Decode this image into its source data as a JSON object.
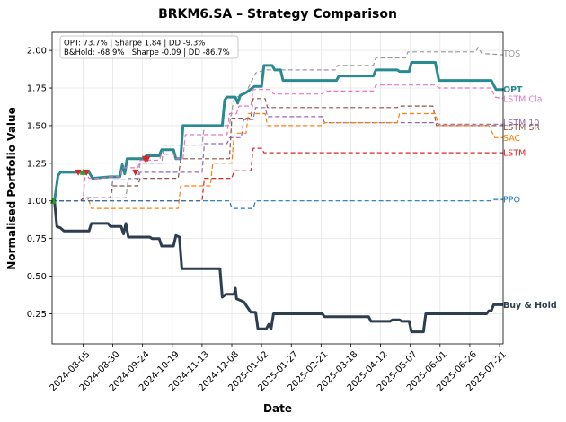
{
  "chart_data": {
    "type": "line",
    "title": "BRKM6.SA – Strategy Comparison",
    "xlabel": "Date",
    "ylabel": "Normalised Portfolio Value",
    "xlim": [
      "2024-07-10",
      "2025-07-24"
    ],
    "ylim": [
      0.05,
      2.12
    ],
    "xticks": [
      "2024-08-05",
      "2024-08-30",
      "2024-09-24",
      "2024-10-19",
      "2024-11-13",
      "2024-12-08",
      "2025-01-02",
      "2025-01-27",
      "2025-02-21",
      "2025-03-18",
      "2025-04-12",
      "2025-05-07",
      "2025-06-01",
      "2025-06-26",
      "2025-07-21"
    ],
    "yticks": [
      0.25,
      0.5,
      0.75,
      1.0,
      1.25,
      1.5,
      1.75,
      2.0
    ],
    "yticklabels": [
      "0.25",
      "0.50",
      "0.75",
      "1.00",
      "1.25",
      "1.50",
      "1.75",
      "2.00"
    ],
    "grid": true,
    "annotation": [
      "OPT: 73.7% | Sharpe 1.84 | DD -9.3%",
      "B&Hold: -68.9% | Sharpe -0.09 | DD -86.7%"
    ],
    "markers": [
      {
        "date": "2024-07-11",
        "y": 1.0,
        "kind": "buy",
        "color": "#2ca02c"
      },
      {
        "date": "2024-08-01",
        "y": 1.19,
        "kind": "sell",
        "color": "#d62728"
      },
      {
        "date": "2024-08-05",
        "y": 1.19,
        "kind": "buy",
        "color": "#2ca02c"
      },
      {
        "date": "2024-08-08",
        "y": 1.19,
        "kind": "sell",
        "color": "#d62728"
      },
      {
        "date": "2024-09-18",
        "y": 1.19,
        "kind": "sell",
        "color": "#d62728"
      },
      {
        "date": "2024-09-26",
        "y": 1.28,
        "kind": "sell",
        "color": "#d62728"
      },
      {
        "date": "2024-09-28",
        "y": 1.28,
        "kind": "sell",
        "color": "#d62728"
      }
    ],
    "series": [
      {
        "name": "TOS",
        "color": "#999999",
        "dash": "5,3",
        "width": 1.2,
        "label_y": 1.98,
        "points": [
          [
            "2024-07-10",
            1.0
          ],
          [
            "2024-08-08",
            1.0
          ],
          [
            "2024-08-10",
            1.02
          ],
          [
            "2024-09-10",
            1.02
          ],
          [
            "2024-09-12",
            1.15
          ],
          [
            "2024-09-20",
            1.15
          ],
          [
            "2024-09-22",
            1.25
          ],
          [
            "2024-10-10",
            1.25
          ],
          [
            "2024-10-12",
            1.37
          ],
          [
            "2024-11-13",
            1.37
          ],
          [
            "2024-11-15",
            1.5
          ],
          [
            "2024-12-06",
            1.5
          ],
          [
            "2024-12-08",
            1.6
          ],
          [
            "2024-12-10",
            1.68
          ],
          [
            "2024-12-20",
            1.72
          ],
          [
            "2024-12-28",
            1.85
          ],
          [
            "2025-01-05",
            1.87
          ],
          [
            "2025-03-05",
            1.87
          ],
          [
            "2025-03-07",
            1.9
          ],
          [
            "2025-04-06",
            1.9
          ],
          [
            "2025-04-08",
            1.95
          ],
          [
            "2025-05-03",
            1.95
          ],
          [
            "2025-05-05",
            1.99
          ],
          [
            "2025-07-01",
            1.99
          ],
          [
            "2025-07-03",
            2.02
          ],
          [
            "2025-07-06",
            1.98
          ],
          [
            "2025-07-24",
            1.97
          ]
        ]
      },
      {
        "name": "OPT",
        "color": "#2a8a92",
        "dash": "",
        "width": 3.0,
        "label_y": 1.74,
        "points": [
          [
            "2024-07-10",
            1.0
          ],
          [
            "2024-07-12",
            1.0
          ],
          [
            "2024-07-15",
            1.17
          ],
          [
            "2024-07-17",
            1.19
          ],
          [
            "2024-08-10",
            1.19
          ],
          [
            "2024-08-13",
            1.15
          ],
          [
            "2024-08-28",
            1.16
          ],
          [
            "2024-09-05",
            1.16
          ],
          [
            "2024-09-07",
            1.24
          ],
          [
            "2024-09-09",
            1.18
          ],
          [
            "2024-09-11",
            1.28
          ],
          [
            "2024-09-25",
            1.28
          ],
          [
            "2024-09-27",
            1.3
          ],
          [
            "2024-10-08",
            1.3
          ],
          [
            "2024-10-10",
            1.34
          ],
          [
            "2024-10-20",
            1.34
          ],
          [
            "2024-10-22",
            1.28
          ],
          [
            "2024-10-26",
            1.28
          ],
          [
            "2024-10-28",
            1.5
          ],
          [
            "2024-11-30",
            1.5
          ],
          [
            "2024-12-02",
            1.67
          ],
          [
            "2024-12-04",
            1.69
          ],
          [
            "2024-12-11",
            1.69
          ],
          [
            "2024-12-13",
            1.65
          ],
          [
            "2024-12-15",
            1.7
          ],
          [
            "2024-12-20",
            1.72
          ],
          [
            "2024-12-27",
            1.76
          ],
          [
            "2025-01-02",
            1.76
          ],
          [
            "2025-01-04",
            1.9
          ],
          [
            "2025-01-11",
            1.9
          ],
          [
            "2025-01-13",
            1.87
          ],
          [
            "2025-01-18",
            1.87
          ],
          [
            "2025-01-20",
            1.8
          ],
          [
            "2025-03-06",
            1.8
          ],
          [
            "2025-03-08",
            1.83
          ],
          [
            "2025-04-06",
            1.83
          ],
          [
            "2025-04-08",
            1.87
          ],
          [
            "2025-04-26",
            1.87
          ],
          [
            "2025-04-28",
            1.86
          ],
          [
            "2025-05-06",
            1.86
          ],
          [
            "2025-05-08",
            1.92
          ],
          [
            "2025-05-28",
            1.92
          ],
          [
            "2025-05-31",
            1.8
          ],
          [
            "2025-07-14",
            1.8
          ],
          [
            "2025-07-18",
            1.74
          ],
          [
            "2025-07-24",
            1.74
          ]
        ]
      },
      {
        "name": "LSTM Cla",
        "color": "#e377c2",
        "dash": "5,3",
        "width": 1.2,
        "label_y": 1.68,
        "points": [
          [
            "2024-07-10",
            1.0
          ],
          [
            "2024-08-05",
            1.0
          ],
          [
            "2024-08-07",
            1.19
          ],
          [
            "2024-08-10",
            1.15
          ],
          [
            "2024-08-20",
            1.15
          ],
          [
            "2024-08-28",
            1.16
          ],
          [
            "2024-09-05",
            1.16
          ],
          [
            "2024-09-07",
            1.22
          ],
          [
            "2024-09-20",
            1.22
          ],
          [
            "2024-09-22",
            1.27
          ],
          [
            "2024-10-08",
            1.27
          ],
          [
            "2024-10-10",
            1.31
          ],
          [
            "2024-10-20",
            1.31
          ],
          [
            "2024-10-22",
            1.28
          ],
          [
            "2024-10-28",
            1.28
          ],
          [
            "2024-10-30",
            1.44
          ],
          [
            "2024-12-04",
            1.44
          ],
          [
            "2024-12-06",
            1.58
          ],
          [
            "2024-12-12",
            1.58
          ],
          [
            "2024-12-14",
            1.63
          ],
          [
            "2024-12-24",
            1.63
          ],
          [
            "2024-12-26",
            1.74
          ],
          [
            "2025-01-10",
            1.74
          ],
          [
            "2025-01-12",
            1.71
          ],
          [
            "2025-02-22",
            1.71
          ],
          [
            "2025-02-24",
            1.73
          ],
          [
            "2025-04-06",
            1.73
          ],
          [
            "2025-04-08",
            1.77
          ],
          [
            "2025-05-28",
            1.77
          ],
          [
            "2025-05-31",
            1.75
          ],
          [
            "2025-07-14",
            1.75
          ],
          [
            "2025-07-17",
            1.69
          ],
          [
            "2025-07-24",
            1.68
          ]
        ]
      },
      {
        "name": "LSTM 10",
        "color": "#9467bd",
        "dash": "5,3",
        "width": 1.2,
        "label_y": 1.52,
        "points": [
          [
            "2024-07-10",
            1.0
          ],
          [
            "2024-08-03",
            1.0
          ],
          [
            "2024-08-05",
            1.02
          ],
          [
            "2024-08-28",
            1.02
          ],
          [
            "2024-08-30",
            1.14
          ],
          [
            "2024-09-20",
            1.14
          ],
          [
            "2024-09-22",
            1.19
          ],
          [
            "2024-11-13",
            1.19
          ],
          [
            "2024-11-15",
            1.38
          ],
          [
            "2024-12-04",
            1.38
          ],
          [
            "2024-12-06",
            1.42
          ],
          [
            "2024-12-16",
            1.42
          ],
          [
            "2024-12-18",
            1.54
          ],
          [
            "2024-12-26",
            1.54
          ],
          [
            "2024-12-28",
            1.62
          ],
          [
            "2025-01-05",
            1.62
          ],
          [
            "2025-01-07",
            1.56
          ],
          [
            "2025-02-22",
            1.56
          ],
          [
            "2025-02-24",
            1.52
          ],
          [
            "2025-05-28",
            1.52
          ],
          [
            "2025-05-31",
            1.51
          ],
          [
            "2025-07-24",
            1.51
          ]
        ]
      },
      {
        "name": "LSTM SR",
        "color": "#8c564b",
        "dash": "5,3",
        "width": 1.2,
        "label_y": 1.49,
        "points": [
          [
            "2024-07-10",
            1.0
          ],
          [
            "2024-08-03",
            1.0
          ],
          [
            "2024-08-05",
            1.02
          ],
          [
            "2024-08-28",
            1.02
          ],
          [
            "2024-08-30",
            1.1
          ],
          [
            "2024-09-20",
            1.1
          ],
          [
            "2024-09-22",
            1.15
          ],
          [
            "2024-10-24",
            1.15
          ],
          [
            "2024-10-26",
            1.28
          ],
          [
            "2024-12-06",
            1.28
          ],
          [
            "2024-12-08",
            1.55
          ],
          [
            "2024-12-24",
            1.55
          ],
          [
            "2024-12-26",
            1.68
          ],
          [
            "2025-01-05",
            1.68
          ],
          [
            "2025-01-07",
            1.62
          ],
          [
            "2025-04-26",
            1.62
          ],
          [
            "2025-04-28",
            1.63
          ],
          [
            "2025-05-26",
            1.63
          ],
          [
            "2025-05-29",
            1.5
          ],
          [
            "2025-07-24",
            1.5
          ]
        ]
      },
      {
        "name": "SAC",
        "color": "#ff7f0e",
        "dash": "5,3",
        "width": 1.2,
        "label_y": 1.42,
        "points": [
          [
            "2024-07-10",
            1.0
          ],
          [
            "2024-08-10",
            1.0
          ],
          [
            "2024-08-12",
            0.95
          ],
          [
            "2024-10-24",
            0.95
          ],
          [
            "2024-10-26",
            1.1
          ],
          [
            "2024-11-20",
            1.1
          ],
          [
            "2024-11-22",
            1.25
          ],
          [
            "2024-12-08",
            1.25
          ],
          [
            "2024-12-10",
            1.45
          ],
          [
            "2024-12-20",
            1.45
          ],
          [
            "2024-12-22",
            1.58
          ],
          [
            "2025-01-05",
            1.58
          ],
          [
            "2025-01-07",
            1.5
          ],
          [
            "2025-02-22",
            1.5
          ],
          [
            "2025-02-24",
            1.52
          ],
          [
            "2025-04-26",
            1.52
          ],
          [
            "2025-04-28",
            1.58
          ],
          [
            "2025-05-28",
            1.58
          ],
          [
            "2025-05-31",
            1.5
          ],
          [
            "2025-07-12",
            1.5
          ],
          [
            "2025-07-17",
            1.42
          ],
          [
            "2025-07-24",
            1.42
          ]
        ]
      },
      {
        "name": "LSTM",
        "color": "#d62728",
        "dash": "5,3",
        "width": 1.2,
        "label_y": 1.32,
        "points": [
          [
            "2024-07-10",
            1.0
          ],
          [
            "2024-11-13",
            1.0
          ],
          [
            "2024-11-15",
            1.15
          ],
          [
            "2024-12-08",
            1.15
          ],
          [
            "2024-12-10",
            1.2
          ],
          [
            "2024-12-24",
            1.2
          ],
          [
            "2024-12-26",
            1.35
          ],
          [
            "2025-01-02",
            1.35
          ],
          [
            "2025-01-04",
            1.32
          ],
          [
            "2025-07-24",
            1.32
          ]
        ]
      },
      {
        "name": "PPO",
        "color": "#1f77b4",
        "dash": "5,3",
        "width": 1.2,
        "label_y": 1.01,
        "points": [
          [
            "2024-07-10",
            1.0
          ],
          [
            "2024-12-06",
            1.0
          ],
          [
            "2024-12-08",
            0.95
          ],
          [
            "2024-12-26",
            0.95
          ],
          [
            "2024-12-28",
            1.0
          ],
          [
            "2025-07-14",
            1.0
          ],
          [
            "2025-07-16",
            1.01
          ],
          [
            "2025-07-24",
            1.01
          ]
        ]
      },
      {
        "name": "Buy & Hold",
        "color": "#2c3e50",
        "dash": "",
        "width": 3.0,
        "label_y": 0.31,
        "points": [
          [
            "2024-07-10",
            1.0
          ],
          [
            "2024-07-12",
            1.0
          ],
          [
            "2024-07-14",
            0.83
          ],
          [
            "2024-07-17",
            0.82
          ],
          [
            "2024-07-20",
            0.8
          ],
          [
            "2024-08-10",
            0.8
          ],
          [
            "2024-08-12",
            0.85
          ],
          [
            "2024-08-26",
            0.85
          ],
          [
            "2024-08-28",
            0.83
          ],
          [
            "2024-09-06",
            0.83
          ],
          [
            "2024-09-08",
            0.78
          ],
          [
            "2024-09-10",
            0.85
          ],
          [
            "2024-09-12",
            0.76
          ],
          [
            "2024-09-30",
            0.76
          ],
          [
            "2024-10-02",
            0.75
          ],
          [
            "2024-10-08",
            0.75
          ],
          [
            "2024-10-10",
            0.7
          ],
          [
            "2024-10-20",
            0.7
          ],
          [
            "2024-10-22",
            0.77
          ],
          [
            "2024-10-25",
            0.76
          ],
          [
            "2024-10-27",
            0.55
          ],
          [
            "2024-11-28",
            0.55
          ],
          [
            "2024-11-30",
            0.36
          ],
          [
            "2024-12-03",
            0.38
          ],
          [
            "2024-12-10",
            0.38
          ],
          [
            "2024-12-11",
            0.42
          ],
          [
            "2024-12-12",
            0.35
          ],
          [
            "2024-12-18",
            0.33
          ],
          [
            "2024-12-24",
            0.26
          ],
          [
            "2024-12-28",
            0.26
          ],
          [
            "2024-12-30",
            0.15
          ],
          [
            "2025-01-06",
            0.15
          ],
          [
            "2025-01-08",
            0.18
          ],
          [
            "2025-01-10",
            0.15
          ],
          [
            "2025-01-12",
            0.25
          ],
          [
            "2025-02-22",
            0.25
          ],
          [
            "2025-02-24",
            0.23
          ],
          [
            "2025-04-02",
            0.23
          ],
          [
            "2025-04-04",
            0.2
          ],
          [
            "2025-04-20",
            0.2
          ],
          [
            "2025-04-22",
            0.21
          ],
          [
            "2025-04-28",
            0.21
          ],
          [
            "2025-04-30",
            0.2
          ],
          [
            "2025-05-06",
            0.2
          ],
          [
            "2025-05-08",
            0.13
          ],
          [
            "2025-05-18",
            0.13
          ],
          [
            "2025-05-20",
            0.25
          ],
          [
            "2025-07-08",
            0.25
          ],
          [
            "2025-07-10",
            0.25
          ],
          [
            "2025-07-12",
            0.27
          ],
          [
            "2025-07-14",
            0.27
          ],
          [
            "2025-07-16",
            0.31
          ],
          [
            "2025-07-24",
            0.31
          ]
        ]
      }
    ]
  }
}
